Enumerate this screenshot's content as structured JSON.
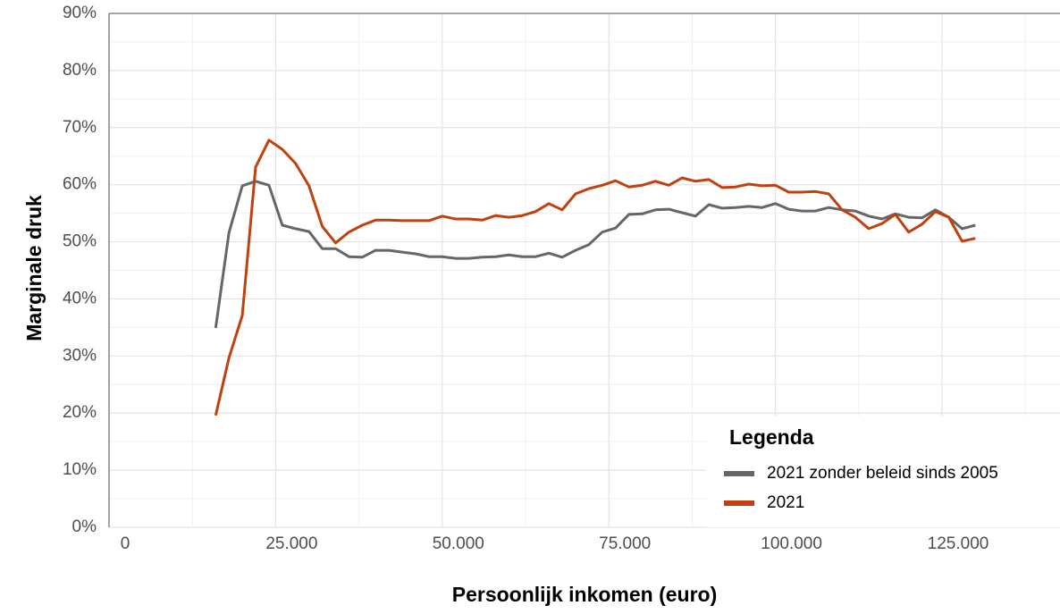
{
  "chart_data": {
    "type": "line",
    "x_label": "Persoonlijk inkomen (euro)",
    "y_label": "Marginale druk",
    "legend_title": "Legenda",
    "legend": "bottom-right",
    "grid": true,
    "xlim": [
      0,
      142700
    ],
    "ylim": [
      0,
      90
    ],
    "xticks": [
      0,
      {
        "value": 25000,
        "label": "25.000"
      },
      {
        "value": 50000,
        "label": "50.000"
      },
      {
        "value": 75000,
        "label": "75.000"
      },
      {
        "value": 100000,
        "label": "100.000"
      },
      {
        "value": 125000,
        "label": "125.000"
      }
    ],
    "yticks": [
      {
        "value": 0,
        "label": "0%"
      },
      {
        "value": 10,
        "label": "10%"
      },
      {
        "value": 20,
        "label": "20%"
      },
      {
        "value": 30,
        "label": "30%"
      },
      {
        "value": 40,
        "label": "40%"
      },
      {
        "value": 50,
        "label": "50%"
      },
      {
        "value": 60,
        "label": "60%"
      },
      {
        "value": 70,
        "label": "70%"
      },
      {
        "value": 80,
        "label": "80%"
      },
      {
        "value": 90,
        "label": "90%"
      }
    ],
    "x": [
      16000,
      18000,
      20000,
      22000,
      24000,
      26000,
      28000,
      30000,
      32000,
      34000,
      36000,
      38000,
      40000,
      42000,
      44000,
      46000,
      48000,
      50000,
      52000,
      54000,
      56000,
      58000,
      60000,
      62000,
      64000,
      66000,
      68000,
      70000,
      72000,
      74000,
      76000,
      78000,
      80000,
      82000,
      84000,
      86000,
      88000,
      90000,
      92000,
      94000,
      96000,
      98000,
      100000,
      102000,
      104000,
      106000,
      108000,
      110000,
      112000,
      114000,
      116000,
      118000,
      120000,
      122000,
      124000,
      126000,
      128000,
      130000
    ],
    "series": [
      {
        "name": "2021 zonder beleid sinds 2005",
        "color": "#666666",
        "values": [
          34.9,
          51.6,
          59.8,
          60.6,
          59.9,
          52.9,
          52.3,
          51.8,
          48.8,
          48.8,
          47.4,
          47.3,
          48.5,
          48.5,
          48.2,
          47.9,
          47.4,
          47.4,
          47.1,
          47.1,
          47.3,
          47.4,
          47.7,
          47.4,
          47.4,
          48.0,
          47.3,
          48.5,
          49.5,
          51.7,
          52.4,
          54.8,
          54.9,
          55.6,
          55.7,
          55.1,
          54.5,
          56.5,
          55.9,
          56.0,
          56.2,
          56.0,
          56.7,
          55.7,
          55.4,
          55.4,
          56.0,
          55.6,
          55.4,
          54.5,
          54.0,
          54.9,
          54.3,
          54.2,
          55.6,
          54.3,
          52.3,
          52.9
        ]
      },
      {
        "name": "2021",
        "color": "#c0410f",
        "values": [
          19.6,
          29.7,
          37.1,
          63.1,
          67.8,
          66.2,
          63.7,
          59.8,
          52.7,
          49.8,
          51.7,
          52.9,
          53.8,
          53.8,
          53.7,
          53.7,
          53.7,
          54.5,
          54.0,
          54.0,
          53.8,
          54.6,
          54.3,
          54.6,
          55.3,
          56.7,
          55.6,
          58.4,
          59.3,
          59.9,
          60.7,
          59.6,
          59.9,
          60.6,
          59.9,
          61.2,
          60.6,
          60.9,
          59.5,
          59.6,
          60.1,
          59.8,
          59.9,
          58.7,
          58.7,
          58.8,
          58.4,
          55.6,
          54.3,
          52.3,
          53.2,
          54.8,
          51.7,
          53.1,
          55.3,
          54.3,
          50.1,
          50.6
        ]
      }
    ]
  }
}
